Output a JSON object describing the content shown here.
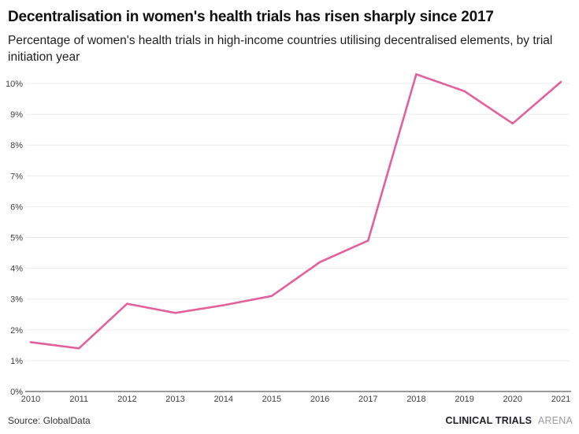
{
  "chart_data": {
    "type": "line",
    "title": "Decentralisation in women's health trials has risen sharply since 2017",
    "subtitle": "Percentage of women's health trials in high-income countries utilising decentralised elements, by trial initiation year",
    "x": [
      "2010",
      "2011",
      "2012",
      "2013",
      "2014",
      "2015",
      "2016",
      "2017",
      "2018",
      "2019",
      "2020",
      "2021"
    ],
    "values": [
      1.6,
      1.4,
      2.85,
      2.55,
      2.8,
      3.1,
      4.2,
      4.9,
      10.3,
      9.75,
      8.7,
      10.05
    ],
    "y_ticks": [
      "0%",
      "1%",
      "2%",
      "3%",
      "4%",
      "5%",
      "6%",
      "7%",
      "8%",
      "9%",
      "10%"
    ],
    "ylim": [
      0,
      10
    ],
    "grid": "horizontal",
    "legend": "none",
    "line_color": "#e2609b",
    "axis_color": "#333333",
    "gridline_color": "#ebebeb",
    "tick_label_color": "#404040"
  },
  "footer": {
    "source": "Source: GlobalData",
    "brand_primary": "CLINICAL TRIALS",
    "brand_secondary": "ARENA"
  }
}
